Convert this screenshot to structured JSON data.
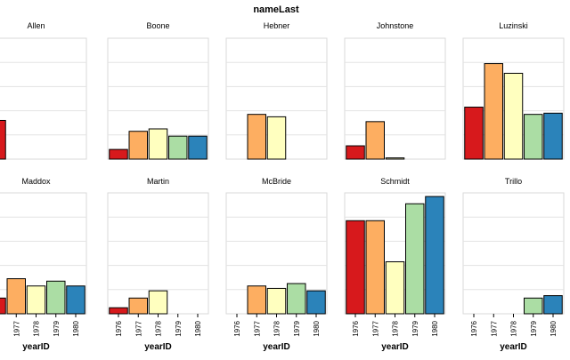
{
  "chart_data": {
    "type": "bar",
    "title": "nameLast",
    "xlabel": "yearID",
    "ylabel": "",
    "categories": [
      "1976",
      "1977",
      "1978",
      "1979",
      "1980"
    ],
    "colors": [
      "#d7191c",
      "#fdae61",
      "#ffffbf",
      "#abdda4",
      "#2b83ba"
    ],
    "ylim": [
      0,
      5
    ],
    "grid": true,
    "facets": [
      {
        "name": "Allen",
        "values": [
          1.6,
          0,
          0,
          0,
          0
        ]
      },
      {
        "name": "Boone",
        "values": [
          0.4,
          1.15,
          1.25,
          0.95,
          0.95
        ]
      },
      {
        "name": "Hebner",
        "values": [
          0,
          1.85,
          1.75,
          0,
          0
        ]
      },
      {
        "name": "Johnstone",
        "values": [
          0.55,
          1.55,
          0.05,
          0,
          0
        ]
      },
      {
        "name": "Luzinski",
        "values": [
          2.15,
          3.95,
          3.55,
          1.85,
          1.9
        ]
      },
      {
        "name": "Maddox",
        "values": [
          0.65,
          1.45,
          1.15,
          1.35,
          1.15
        ]
      },
      {
        "name": "Martin",
        "values": [
          0.25,
          0.65,
          0.95,
          0,
          0
        ]
      },
      {
        "name": "McBride",
        "values": [
          0,
          1.15,
          1.05,
          1.25,
          0.95
        ]
      },
      {
        "name": "Schmidt",
        "values": [
          3.85,
          3.85,
          2.15,
          4.55,
          4.85
        ]
      },
      {
        "name": "Trillo",
        "values": [
          0,
          0,
          0,
          0.65,
          0.75
        ]
      }
    ]
  }
}
